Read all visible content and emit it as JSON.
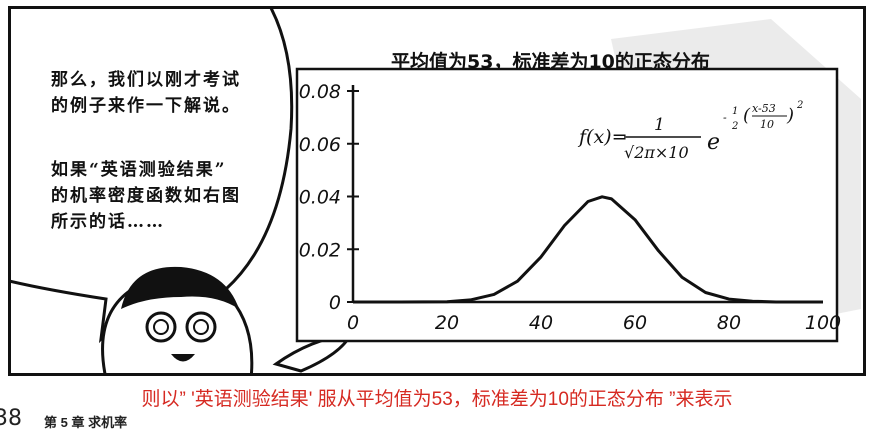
{
  "speech": {
    "lines_top": [
      "那么，我们以刚才考试",
      "的例子来作一下解说。"
    ],
    "lines_bottom": [
      "如果“英语测验结果”",
      "的机率密度函数如右图",
      "所示的话……"
    ]
  },
  "chart_data": {
    "type": "line",
    "title": "平均值为53，标准差为10的正态分布",
    "formula": "f(x)= 1/(√(2π)×10) e^(-½((x-53)/10)²)",
    "formula_parts": {
      "lhs": "f(x)=",
      "num": "1",
      "den": "√2π×10",
      "e": "e",
      "exp_sign": "-",
      "exp_half_num": "1",
      "exp_half_den": "2",
      "exp_frac_num": "x-53",
      "exp_frac_den": "10",
      "exp_pow": "2"
    },
    "mean": 53,
    "sd": 10,
    "xlim": [
      0,
      100
    ],
    "ylim": [
      0,
      0.08
    ],
    "x_ticks": [
      "0",
      "20",
      "40",
      "60",
      "80",
      "100"
    ],
    "y_ticks": [
      "0",
      "0.02",
      "0.04",
      "0.06",
      "0.08"
    ],
    "x_tick_values": [
      0,
      20,
      40,
      60,
      80,
      100
    ],
    "y_tick_values": [
      0,
      0.02,
      0.04,
      0.06,
      0.08
    ],
    "series": [
      {
        "x": [
          0,
          10,
          20,
          25,
          30,
          35,
          40,
          45,
          50,
          53,
          55,
          60,
          65,
          70,
          75,
          80,
          85,
          90,
          100
        ],
        "y": [
          0,
          0,
          0.0001,
          0.0008,
          0.0029,
          0.0079,
          0.0171,
          0.029,
          0.0381,
          0.0399,
          0.0391,
          0.0312,
          0.0194,
          0.0094,
          0.0036,
          0.0011,
          0.0003,
          0,
          0
        ]
      }
    ]
  },
  "caption": "则以” '英语测验结果' 服从平均值为53，标准差为10的正态分布 ”来表示",
  "footer": {
    "page_number": "38",
    "chapter": "第 5 章   求机率"
  }
}
